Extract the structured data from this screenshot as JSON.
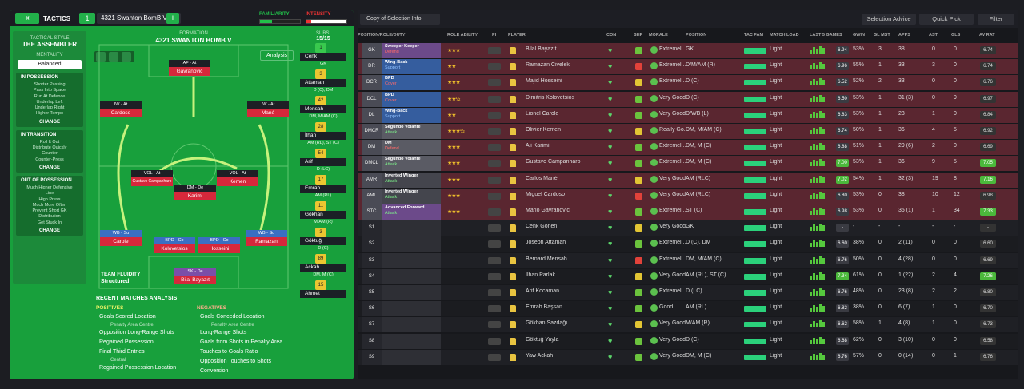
{
  "topbar": {
    "back_label": "«",
    "tactics_label": "TACTICS",
    "tactic_num": "1",
    "tactic_name": "4321 Swanton BomB V",
    "add_label": "+",
    "familiarity_label": "FAMILIARITY",
    "intensity_label": "INTENSITY"
  },
  "sidebar": {
    "style_header": "TACTICAL STYLE",
    "style_value": "THE ASSEMBLER",
    "mentality_header": "MENTALITY",
    "mentality_value": "Balanced",
    "possession": {
      "title": "IN POSSESSION",
      "items": [
        "Shorter Passing",
        "Pass Into Space",
        "Run At Defence",
        "Underlap Left",
        "Underlap Right",
        "Higher Tempo"
      ],
      "change": "CHANGE"
    },
    "transition": {
      "title": "IN TRANSITION",
      "items": [
        "Roll It Out",
        "Distribute Quickly",
        "Counter",
        "Counter-Press"
      ],
      "change": "CHANGE"
    },
    "out": {
      "title": "OUT OF POSSESSION",
      "items": [
        "Much Higher Defensive",
        "Line",
        "High Press",
        "Much More Often",
        "Prevent Short GK",
        "Distribution",
        "Get Stuck In"
      ],
      "change": "CHANGE"
    }
  },
  "pitch": {
    "label": "FORMATION",
    "name": "4321 SWANTON BOMB V",
    "analysis_label": "Analysis",
    "players": [
      {
        "role": "AF - At",
        "name": "Gavranović"
      },
      {
        "role": "IW - At",
        "name": "Cardoso"
      },
      {
        "role": "IW - At",
        "name": "Mané"
      },
      {
        "role": "VOL - At",
        "name": "Gustavo Campanharo"
      },
      {
        "role": "VOL - At",
        "name": "Kemen"
      },
      {
        "role": "DM - De",
        "name": "Karimi"
      },
      {
        "role": "WB - Su",
        "name": "Carole"
      },
      {
        "role": "BPD - Co",
        "name": "Kolovetsios"
      },
      {
        "role": "BPD - Co",
        "name": "Hosseini"
      },
      {
        "role": "WB - Su",
        "name": "Ramazan"
      },
      {
        "role": "SK - De",
        "name": "Bilal Bayazıt"
      }
    ],
    "fluidity_label": "TEAM FLUIDITY",
    "fluidity_value": "Structured"
  },
  "subs": {
    "label": "SUBS:",
    "count": "15/15",
    "items": [
      {
        "num": "1",
        "name": "Cenk",
        "pos": "GK"
      },
      {
        "num": "3",
        "name": "Attamah",
        "pos": "D (C), DM"
      },
      {
        "num": "42",
        "name": "Mensah",
        "pos": "DM, M/AM (C)"
      },
      {
        "num": "28",
        "name": "İlhan",
        "pos": "AM (RL), ST (C)"
      },
      {
        "num": "54",
        "name": "Arif",
        "pos": "D (LC)"
      },
      {
        "num": "17",
        "name": "Emrah",
        "pos": "AM (RL)"
      },
      {
        "num": "11",
        "name": "Gökhan",
        "pos": "M/AM (R)"
      },
      {
        "num": "3",
        "name": "Göktuğ",
        "pos": "D (C)"
      },
      {
        "num": "89",
        "name": "Ackah",
        "pos": "DM, M (C)"
      },
      {
        "num": "15",
        "name": "Ahmet",
        "pos": ""
      }
    ]
  },
  "analysis": {
    "title": "RECENT MATCHES ANALYSIS",
    "positives_label": "POSITIVES",
    "negatives_label": "NEGATIVES",
    "positives": [
      {
        "text": "Goals Scored Location",
        "sub": "Penalty Area Centre"
      },
      {
        "text": "Opposition Long-Range Shots",
        "sub": ""
      },
      {
        "text": "Regained Possession",
        "sub": ""
      },
      {
        "text": "Final Third Entries",
        "sub": "Central"
      },
      {
        "text": "Regained Possession Location",
        "sub": ""
      }
    ],
    "negatives": [
      {
        "text": "Goals Conceded Location",
        "sub": "Penalty Area Centre"
      },
      {
        "text": "Long-Range Shots",
        "sub": ""
      },
      {
        "text": "Goals from Shots in Penalty Area",
        "sub": ""
      },
      {
        "text": "Touches to Goals Ratio",
        "sub": ""
      },
      {
        "text": "Opposition Touches to Shots Conversion",
        "sub": ""
      }
    ]
  },
  "right": {
    "copy_label": "Copy of Selection Info",
    "advice_label": "Selection Advice",
    "quick_label": "Quick Pick",
    "filter_label": "Filter",
    "headers": [
      "POSITION/ROLE/DUTY",
      "ROLE ABILITY",
      "PI",
      "PLAYER",
      "CON",
      "SHP",
      "MORALE",
      "POSITION",
      "TAC FAM",
      "MATCH LOAD",
      "LAST 5 GAMES",
      "GWIN",
      "GL MST",
      "APPS",
      "AST",
      "GLS",
      "AV RAT"
    ],
    "rows": [
      {
        "pos": "GK",
        "role": "Sweeper Keeper",
        "duty": "Defend",
        "stars": "★★★",
        "player": "Bilal Bayazıt",
        "morale": "Extremel...",
        "position": "GK",
        "load": "Light",
        "avr": "6.94",
        "gwin": "53%",
        "glmst": "3",
        "apps": "38",
        "ast": "0",
        "gls": "0",
        "avrat": "6.74"
      },
      {
        "pos": "DR",
        "role": "Wing-Back",
        "duty": "Support",
        "stars": "★★",
        "player": "Ramazan Civelek",
        "morale": "Extremel...",
        "position": "D/M/AM (R)",
        "load": "Light",
        "avr": "6.96",
        "gwin": "55%",
        "glmst": "1",
        "apps": "33",
        "ast": "3",
        "gls": "0",
        "avrat": "6.74"
      },
      {
        "pos": "DCR",
        "role": "BPD",
        "duty": "Cover",
        "stars": "★★★",
        "player": "Majid Hosseini",
        "morale": "Extremel...",
        "position": "D (C)",
        "load": "Light",
        "avr": "6.52",
        "gwin": "52%",
        "glmst": "2",
        "apps": "33",
        "ast": "0",
        "gls": "0",
        "avrat": "6.76"
      },
      {
        "pos": "DCL",
        "role": "BPD",
        "duty": "Cover",
        "stars": "★★½",
        "player": "Dimitris Kolovetsios",
        "morale": "Very Good",
        "position": "D (C)",
        "load": "Light",
        "avr": "6.50",
        "gwin": "53%",
        "glmst": "1",
        "apps": "31 (3)",
        "ast": "0",
        "gls": "9",
        "avrat": "6.97"
      },
      {
        "pos": "DL",
        "role": "Wing-Back",
        "duty": "Support",
        "stars": "★★",
        "player": "Lionel Carole",
        "morale": "Very Good",
        "position": "D/WB (L)",
        "load": "Light",
        "avr": "6.83",
        "gwin": "53%",
        "glmst": "1",
        "apps": "23",
        "ast": "1",
        "gls": "0",
        "avrat": "6.84"
      },
      {
        "pos": "DMCR",
        "role": "Segundo Volante",
        "duty": "Attack",
        "stars": "★★★½",
        "player": "Olivier Kemen",
        "morale": "Really Go...",
        "position": "DM, M/AM (C)",
        "load": "Light",
        "avr": "6.74",
        "gwin": "50%",
        "glmst": "1",
        "apps": "36",
        "ast": "4",
        "gls": "5",
        "avrat": "6.92"
      },
      {
        "pos": "DM",
        "role": "DM",
        "duty": "Defend",
        "stars": "★★★",
        "player": "Ali Karimi",
        "morale": "Extremel...",
        "position": "DM, M (C)",
        "load": "Light",
        "avr": "6.88",
        "gwin": "51%",
        "glmst": "1",
        "apps": "29 (6)",
        "ast": "2",
        "gls": "0",
        "avrat": "6.69"
      },
      {
        "pos": "DMCL",
        "role": "Segundo Volante",
        "duty": "Attack",
        "stars": "★★★",
        "player": "Gustavo Campanharo",
        "morale": "Extremel...",
        "position": "DM, M (C)",
        "load": "Light",
        "avr": "7.00",
        "gwin": "53%",
        "glmst": "1",
        "apps": "36",
        "ast": "9",
        "gls": "5",
        "avrat": "7.05"
      },
      {
        "pos": "AMR",
        "role": "Inverted Winger",
        "duty": "Attack",
        "stars": "★★★",
        "player": "Carlos Mané",
        "morale": "Very Good",
        "position": "AM (RLC)",
        "load": "Light",
        "avr": "7.02",
        "gwin": "54%",
        "glmst": "1",
        "apps": "32 (3)",
        "ast": "19",
        "gls": "8",
        "avrat": "7.16"
      },
      {
        "pos": "AML",
        "role": "Inverted Winger",
        "duty": "Attack",
        "stars": "★★★",
        "player": "Miguel Cardoso",
        "morale": "Very Good",
        "position": "AM (RLC)",
        "load": "Light",
        "avr": "6.80",
        "gwin": "53%",
        "glmst": "0",
        "apps": "38",
        "ast": "10",
        "gls": "12",
        "avrat": "6.98"
      },
      {
        "pos": "STC",
        "role": "Advanced Forward",
        "duty": "Attack",
        "stars": "★★★",
        "player": "Mario Gavranović",
        "morale": "Extremel...",
        "position": "ST (C)",
        "load": "Light",
        "avr": "6.98",
        "gwin": "53%",
        "glmst": "0",
        "apps": "35 (1)",
        "ast": "1",
        "gls": "34",
        "avrat": "7.33"
      },
      {
        "pos": "S1",
        "role": "",
        "duty": "",
        "stars": "",
        "player": "Cenk Gönen",
        "morale": "Very Good",
        "position": "GK",
        "load": "Light",
        "avr": "-",
        "gwin": "-",
        "glmst": "-",
        "apps": "-",
        "ast": "-",
        "gls": "-",
        "avrat": "-"
      },
      {
        "pos": "S2",
        "role": "",
        "duty": "",
        "stars": "",
        "player": "Joseph Attamah",
        "morale": "Extremel...",
        "position": "D (C), DM",
        "load": "Light",
        "avr": "6.60",
        "gwin": "38%",
        "glmst": "0",
        "apps": "2 (11)",
        "ast": "0",
        "gls": "0",
        "avrat": "6.60"
      },
      {
        "pos": "S3",
        "role": "",
        "duty": "",
        "stars": "",
        "player": "Bernard Mensah",
        "morale": "Extremel...",
        "position": "DM, M/AM (C)",
        "load": "Light",
        "avr": "6.76",
        "gwin": "50%",
        "glmst": "0",
        "apps": "4 (28)",
        "ast": "0",
        "gls": "0",
        "avrat": "6.69"
      },
      {
        "pos": "S4",
        "role": "",
        "duty": "",
        "stars": "",
        "player": "İlhan Parlak",
        "morale": "Very Good",
        "position": "AM (RL), ST (C)",
        "load": "Light",
        "avr": "7.34",
        "gwin": "61%",
        "glmst": "0",
        "apps": "1 (22)",
        "ast": "2",
        "gls": "4",
        "avrat": "7.26"
      },
      {
        "pos": "S5",
        "role": "",
        "duty": "",
        "stars": "",
        "player": "Arif Kocaman",
        "morale": "Extremel...",
        "position": "D (LC)",
        "load": "Light",
        "avr": "6.76",
        "gwin": "48%",
        "glmst": "0",
        "apps": "23 (8)",
        "ast": "2",
        "gls": "2",
        "avrat": "6.80"
      },
      {
        "pos": "S6",
        "role": "",
        "duty": "",
        "stars": "",
        "player": "Emrah Başsan",
        "morale": "Good",
        "position": "AM (RL)",
        "load": "Light",
        "avr": "6.82",
        "gwin": "38%",
        "glmst": "0",
        "apps": "6 (7)",
        "ast": "1",
        "gls": "0",
        "avrat": "6.70"
      },
      {
        "pos": "S7",
        "role": "",
        "duty": "",
        "stars": "",
        "player": "Gökhan Sazdağı",
        "morale": "Very Good",
        "position": "M/AM (R)",
        "load": "Light",
        "avr": "6.62",
        "gwin": "58%",
        "glmst": "1",
        "apps": "4 (8)",
        "ast": "1",
        "gls": "0",
        "avrat": "6.73"
      },
      {
        "pos": "S8",
        "role": "",
        "duty": "",
        "stars": "",
        "player": "Göktuğ Yayla",
        "morale": "Very Good",
        "position": "D (C)",
        "load": "Light",
        "avr": "6.68",
        "gwin": "62%",
        "glmst": "0",
        "apps": "3 (10)",
        "ast": "0",
        "gls": "0",
        "avrat": "6.58"
      },
      {
        "pos": "S9",
        "role": "",
        "duty": "",
        "stars": "",
        "player": "Yaw Ackah",
        "morale": "Very Good",
        "position": "DM, M (C)",
        "load": "Light",
        "avr": "6.76",
        "gwin": "57%",
        "glmst": "0",
        "apps": "0 (14)",
        "ast": "0",
        "gls": "1",
        "avrat": "6.76"
      }
    ]
  },
  "colors": {
    "accent": "#18a03c",
    "danger": "#d6283b",
    "row_red": "#5a2630",
    "row_dark": "#1f2025"
  }
}
